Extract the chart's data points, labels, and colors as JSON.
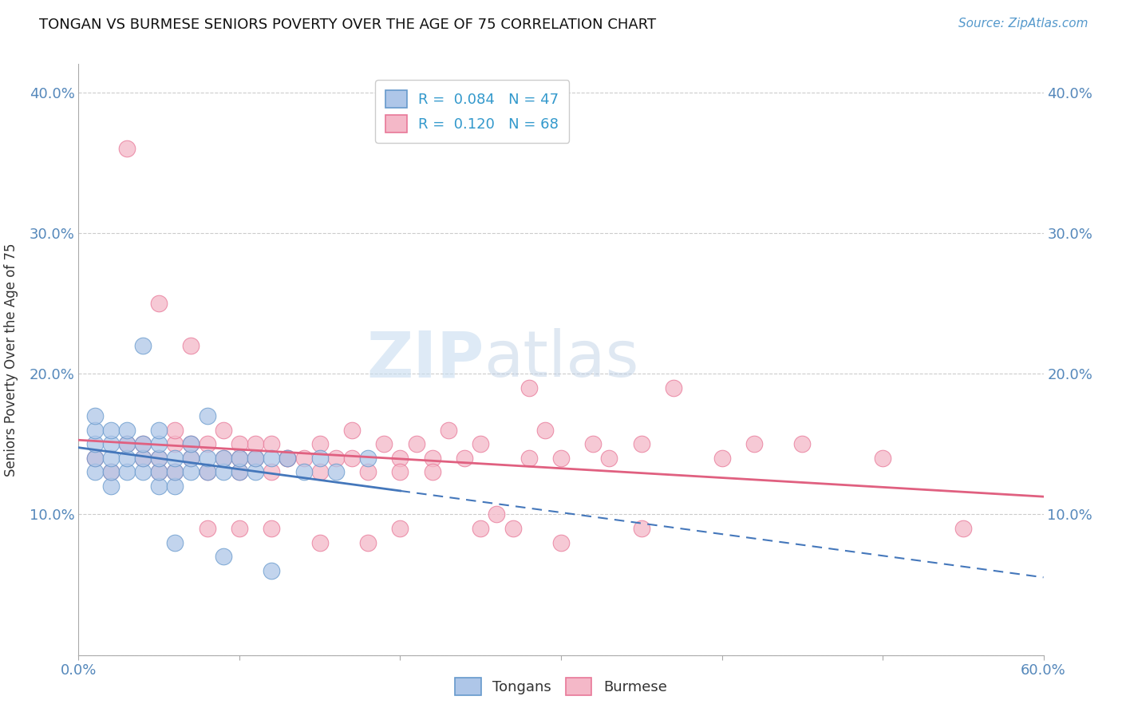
{
  "title": "TONGAN VS BURMESE SENIORS POVERTY OVER THE AGE OF 75 CORRELATION CHART",
  "source_text": "Source: ZipAtlas.com",
  "ylabel": "Seniors Poverty Over the Age of 75",
  "xlim": [
    0.0,
    0.6
  ],
  "ylim": [
    0.0,
    0.42
  ],
  "xticks": [
    0.0,
    0.1,
    0.2,
    0.3,
    0.4,
    0.5,
    0.6
  ],
  "yticks": [
    0.0,
    0.1,
    0.2,
    0.3,
    0.4
  ],
  "tongan_R": "0.084",
  "tongan_N": "47",
  "burmese_R": "0.120",
  "burmese_N": "68",
  "tongan_color": "#aec6e8",
  "burmese_color": "#f4b8c8",
  "tongan_edge_color": "#6699cc",
  "burmese_edge_color": "#e87898",
  "tongan_line_color": "#4477bb",
  "burmese_line_color": "#e06080",
  "watermark_color": "#d8e8f4",
  "tongan_x": [
    0.01,
    0.01,
    0.01,
    0.01,
    0.01,
    0.02,
    0.02,
    0.02,
    0.02,
    0.02,
    0.03,
    0.03,
    0.03,
    0.03,
    0.04,
    0.04,
    0.04,
    0.04,
    0.05,
    0.05,
    0.05,
    0.05,
    0.05,
    0.06,
    0.06,
    0.06,
    0.07,
    0.07,
    0.07,
    0.08,
    0.08,
    0.08,
    0.09,
    0.09,
    0.1,
    0.1,
    0.11,
    0.11,
    0.12,
    0.13,
    0.14,
    0.15,
    0.16,
    0.18,
    0.06,
    0.09,
    0.12
  ],
  "tongan_y": [
    0.13,
    0.14,
    0.15,
    0.16,
    0.17,
    0.12,
    0.13,
    0.14,
    0.15,
    0.16,
    0.13,
    0.14,
    0.15,
    0.16,
    0.13,
    0.14,
    0.15,
    0.22,
    0.12,
    0.13,
    0.14,
    0.15,
    0.16,
    0.12,
    0.13,
    0.14,
    0.13,
    0.14,
    0.15,
    0.13,
    0.14,
    0.17,
    0.13,
    0.14,
    0.13,
    0.14,
    0.13,
    0.14,
    0.14,
    0.14,
    0.13,
    0.14,
    0.13,
    0.14,
    0.08,
    0.07,
    0.06
  ],
  "burmese_x": [
    0.01,
    0.02,
    0.03,
    0.03,
    0.04,
    0.05,
    0.05,
    0.06,
    0.06,
    0.07,
    0.07,
    0.08,
    0.08,
    0.09,
    0.09,
    0.1,
    0.1,
    0.11,
    0.11,
    0.12,
    0.12,
    0.13,
    0.14,
    0.15,
    0.15,
    0.16,
    0.17,
    0.18,
    0.19,
    0.2,
    0.21,
    0.22,
    0.23,
    0.24,
    0.25,
    0.26,
    0.27,
    0.28,
    0.29,
    0.3,
    0.32,
    0.33,
    0.35,
    0.37,
    0.4,
    0.42,
    0.45,
    0.5,
    0.08,
    0.1,
    0.12,
    0.15,
    0.18,
    0.2,
    0.22,
    0.25,
    0.3,
    0.35,
    0.04,
    0.05,
    0.06,
    0.07,
    0.1,
    0.13,
    0.17,
    0.2,
    0.28,
    0.55
  ],
  "burmese_y": [
    0.14,
    0.13,
    0.15,
    0.36,
    0.14,
    0.13,
    0.25,
    0.13,
    0.15,
    0.14,
    0.22,
    0.13,
    0.15,
    0.14,
    0.16,
    0.13,
    0.14,
    0.14,
    0.15,
    0.13,
    0.15,
    0.14,
    0.14,
    0.13,
    0.15,
    0.14,
    0.16,
    0.13,
    0.15,
    0.14,
    0.15,
    0.14,
    0.16,
    0.14,
    0.15,
    0.1,
    0.09,
    0.14,
    0.16,
    0.14,
    0.15,
    0.14,
    0.15,
    0.19,
    0.14,
    0.15,
    0.15,
    0.14,
    0.09,
    0.09,
    0.09,
    0.08,
    0.08,
    0.09,
    0.13,
    0.09,
    0.08,
    0.09,
    0.15,
    0.14,
    0.16,
    0.15,
    0.15,
    0.14,
    0.14,
    0.13,
    0.19,
    0.09
  ]
}
